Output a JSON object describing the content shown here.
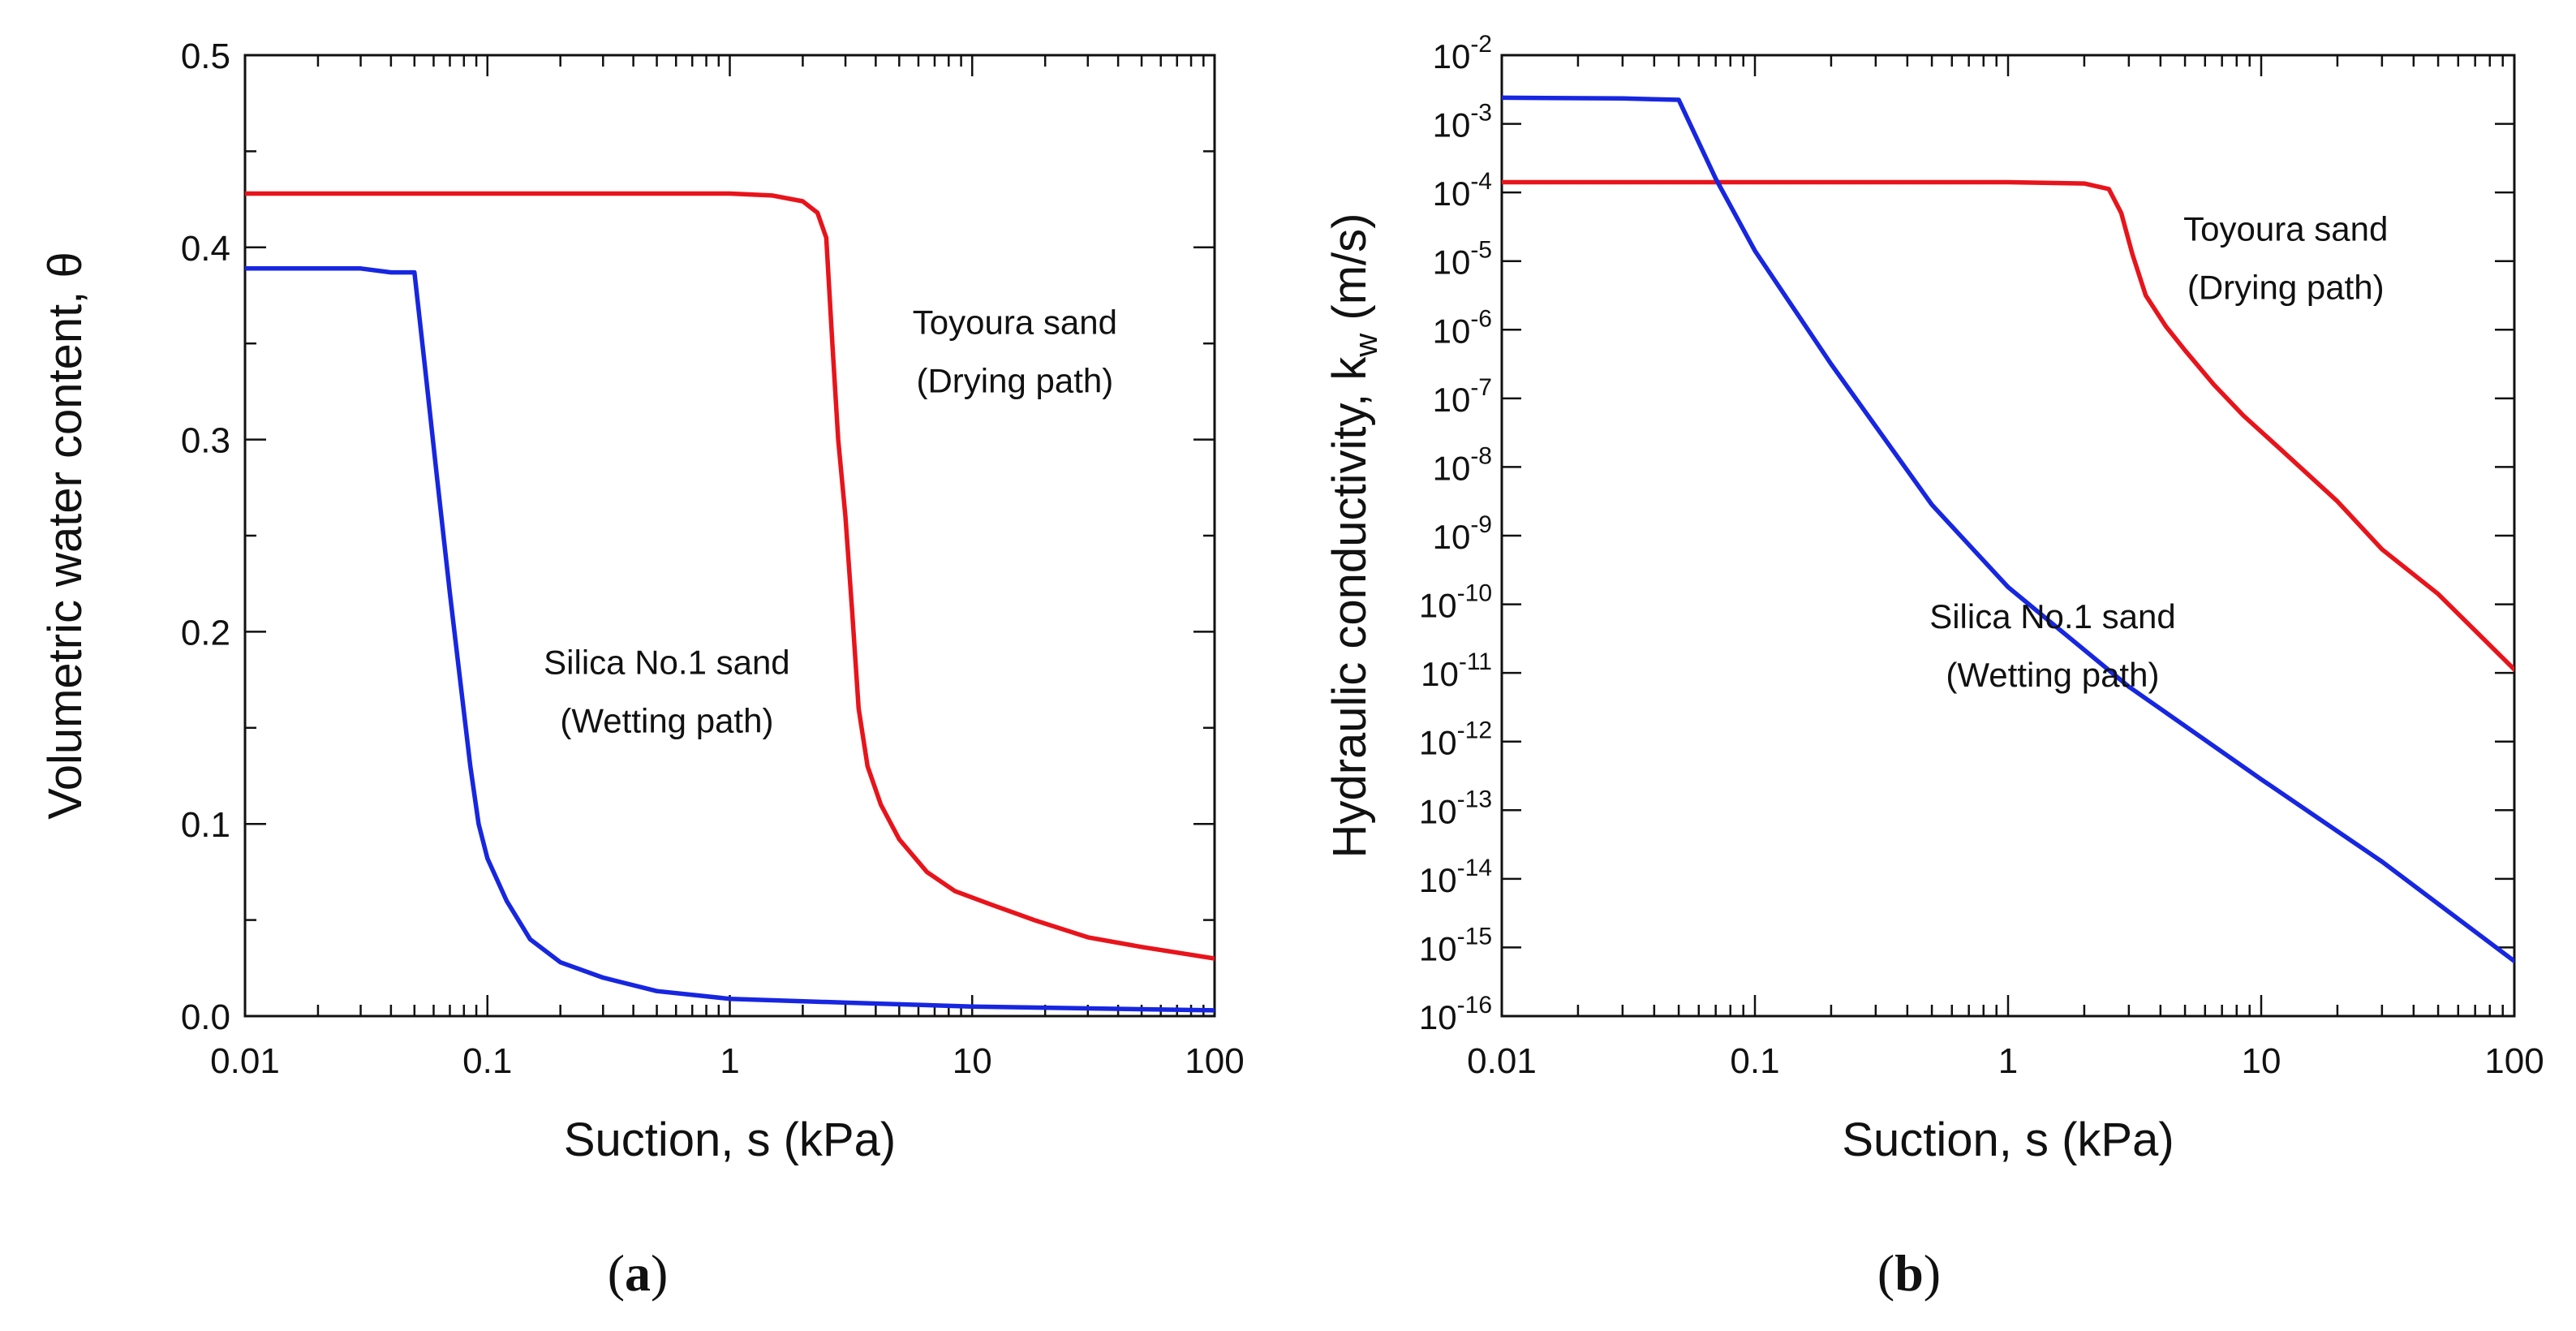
{
  "colors": {
    "drying": "#e8141b",
    "wetting": "#1726e0",
    "axis": "#111111"
  },
  "chart_data": [
    {
      "type": "line",
      "panel_label": {
        "open": "(",
        "letter": "a",
        "close": ")"
      },
      "xscale": "log",
      "xlim": [
        0.01,
        100
      ],
      "xticks": [
        "0.01",
        "0.1",
        "1",
        "10",
        "100"
      ],
      "xlabel": "Suction, s (kPa)",
      "yscale": "linear",
      "ylim": [
        0.0,
        0.5
      ],
      "yticks": [
        "0.0",
        "0.1",
        "0.2",
        "0.3",
        "0.4",
        "0.5"
      ],
      "ylabel": "Volumetric water content, θ",
      "series": [
        {
          "name": "Toyoura sand (Drying path)",
          "color_key": "drying",
          "points": [
            [
              0.01,
              0.428
            ],
            [
              0.1,
              0.428
            ],
            [
              1.0,
              0.428
            ],
            [
              1.5,
              0.427
            ],
            [
              2.0,
              0.424
            ],
            [
              2.3,
              0.418
            ],
            [
              2.5,
              0.405
            ],
            [
              2.65,
              0.35
            ],
            [
              2.8,
              0.3
            ],
            [
              3.0,
              0.26
            ],
            [
              3.2,
              0.21
            ],
            [
              3.4,
              0.16
            ],
            [
              3.7,
              0.13
            ],
            [
              4.2,
              0.11
            ],
            [
              5.0,
              0.092
            ],
            [
              6.5,
              0.075
            ],
            [
              8.5,
              0.065
            ],
            [
              12.0,
              0.058
            ],
            [
              18.0,
              0.05
            ],
            [
              30.0,
              0.041
            ],
            [
              50.0,
              0.036
            ],
            [
              100.0,
              0.03
            ]
          ]
        },
        {
          "name": "Silica No.1 sand (Wetting path)",
          "color_key": "wetting",
          "points": [
            [
              0.01,
              0.389
            ],
            [
              0.03,
              0.389
            ],
            [
              0.04,
              0.387
            ],
            [
              0.05,
              0.387
            ],
            [
              0.055,
              0.34
            ],
            [
              0.062,
              0.28
            ],
            [
              0.07,
              0.22
            ],
            [
              0.078,
              0.17
            ],
            [
              0.085,
              0.13
            ],
            [
              0.092,
              0.1
            ],
            [
              0.1,
              0.082
            ],
            [
              0.12,
              0.06
            ],
            [
              0.15,
              0.04
            ],
            [
              0.2,
              0.028
            ],
            [
              0.3,
              0.02
            ],
            [
              0.5,
              0.013
            ],
            [
              1.0,
              0.009
            ],
            [
              3.0,
              0.007
            ],
            [
              10.0,
              0.005
            ],
            [
              100.0,
              0.003
            ]
          ]
        }
      ],
      "annotations": [
        {
          "lines": [
            "Toyoura sand",
            "(Drying path)"
          ],
          "x": 15.0,
          "y": 0.355
        },
        {
          "lines": [
            "Silica No.1 sand",
            "(Wetting path)"
          ],
          "x": 0.55,
          "y": 0.178
        }
      ]
    },
    {
      "type": "line",
      "panel_label": {
        "open": "(",
        "letter": "b",
        "close": ")"
      },
      "xscale": "log",
      "xlim": [
        0.01,
        100
      ],
      "xticks": [
        "0.01",
        "0.1",
        "1",
        "10",
        "100"
      ],
      "xlabel": "Suction, s (kPa)",
      "yscale": "log",
      "ylim": [
        -16,
        -2
      ],
      "yticks": [
        {
          "base": "10",
          "exp": "-2"
        },
        {
          "base": "10",
          "exp": "-3"
        },
        {
          "base": "10",
          "exp": "-4"
        },
        {
          "base": "10",
          "exp": "-5"
        },
        {
          "base": "10",
          "exp": "-6"
        },
        {
          "base": "10",
          "exp": "-7"
        },
        {
          "base": "10",
          "exp": "-8"
        },
        {
          "base": "10",
          "exp": "-9"
        },
        {
          "base": "10",
          "exp": "-10"
        },
        {
          "base": "10",
          "exp": "-11"
        },
        {
          "base": "10",
          "exp": "-12"
        },
        {
          "base": "10",
          "exp": "-13"
        },
        {
          "base": "10",
          "exp": "-14"
        },
        {
          "base": "10",
          "exp": "-15"
        },
        {
          "base": "10",
          "exp": "-16"
        }
      ],
      "ylabel": {
        "main": "Hydraulic conductivity, k",
        "sub": "w",
        "unit": " (m/s)"
      },
      "series": [
        {
          "name": "Toyoura sand (Drying path)",
          "color_key": "drying",
          "points": [
            [
              0.01,
              -3.85
            ],
            [
              1.0,
              -3.85
            ],
            [
              2.0,
              -3.87
            ],
            [
              2.5,
              -3.95
            ],
            [
              2.8,
              -4.3
            ],
            [
              3.1,
              -4.9
            ],
            [
              3.5,
              -5.5
            ],
            [
              4.2,
              -5.95
            ],
            [
              5.0,
              -6.3
            ],
            [
              6.5,
              -6.8
            ],
            [
              8.5,
              -7.25
            ],
            [
              12.0,
              -7.75
            ],
            [
              20.0,
              -8.5
            ],
            [
              30.0,
              -9.2
            ],
            [
              50.0,
              -9.85
            ],
            [
              100.0,
              -10.95
            ]
          ]
        },
        {
          "name": "Silica No.1 sand (Wetting path)",
          "color_key": "wetting",
          "points": [
            [
              0.01,
              -2.62
            ],
            [
              0.03,
              -2.63
            ],
            [
              0.05,
              -2.65
            ],
            [
              0.07,
              -3.8
            ],
            [
              0.1,
              -4.85
            ],
            [
              0.2,
              -6.5
            ],
            [
              0.5,
              -8.55
            ],
            [
              1.0,
              -9.75
            ],
            [
              3.0,
              -11.2
            ],
            [
              10.0,
              -12.55
            ],
            [
              30.0,
              -13.75
            ],
            [
              100.0,
              -15.2
            ]
          ]
        }
      ],
      "annotations": [
        {
          "lines": [
            "Toyoura sand",
            "(Drying path)"
          ],
          "x": 12.5,
          "y": -4.7
        },
        {
          "lines": [
            "Silica No.1 sand",
            "(Wetting path)"
          ],
          "x": 1.5,
          "y": -10.35
        }
      ]
    }
  ]
}
